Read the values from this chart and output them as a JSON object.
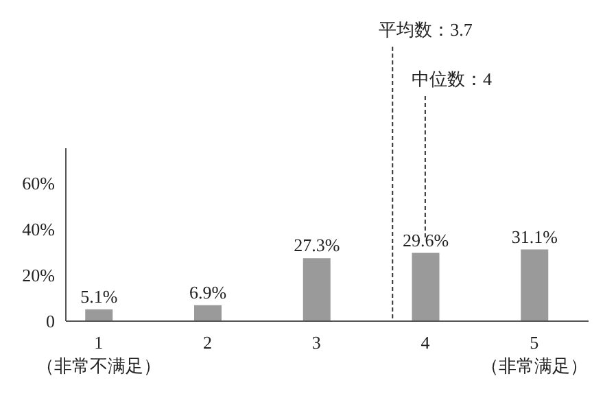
{
  "chart_data": {
    "type": "bar",
    "x": [
      1,
      2,
      3,
      4,
      5
    ],
    "xlim": [
      0.7,
      5.5
    ],
    "xticks": [
      {
        "value": 1,
        "label": "1\n（非常不满足）"
      },
      2,
      3,
      4,
      {
        "value": 5,
        "label": "5\n（非常满足）"
      }
    ],
    "values": [
      5.1,
      6.9,
      27.3,
      29.6,
      31.1
    ],
    "value_labels": [
      "5.1%",
      "6.9%",
      "27.3%",
      "29.6%",
      "31.1%"
    ],
    "color": "#9a9a9a",
    "ylim": [
      0,
      75
    ],
    "yticks": [
      0,
      {
        "value": 20,
        "label": "20%"
      },
      {
        "value": 40,
        "label": "40%"
      },
      {
        "value": 60,
        "label": "60%"
      }
    ],
    "ref_lines": [
      {
        "axis": "x",
        "value": 3.7,
        "label": "平均数：3.7",
        "line_style": "dashed",
        "color": "#333333"
      },
      {
        "axis": "x",
        "value": 4,
        "label": "中位数：4",
        "line_style": "dashed",
        "color": "#333333"
      }
    ]
  }
}
